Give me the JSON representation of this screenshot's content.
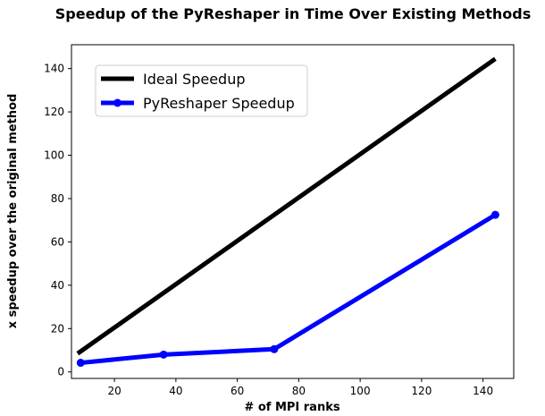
{
  "chart_data": {
    "type": "line",
    "title": "Speedup of the PyReshaper in Time Over Existing Methods",
    "xlabel": "# of MPI ranks",
    "ylabel": "x speedup over the original method",
    "xlim": [
      6,
      150
    ],
    "ylim": [
      -3,
      151
    ],
    "xticks": [
      20,
      40,
      60,
      80,
      100,
      120,
      140
    ],
    "yticks": [
      0,
      20,
      40,
      60,
      80,
      100,
      120,
      140
    ],
    "grid": false,
    "legend_position": "top-left",
    "series": [
      {
        "name": "Ideal Speedup",
        "color": "#000000",
        "marker": "none",
        "x": [
          8,
          144
        ],
        "y": [
          8.5,
          144.5
        ]
      },
      {
        "name": "PyReshaper Speedup",
        "color": "#0000ff",
        "marker": "circle",
        "x": [
          9,
          36,
          72,
          144
        ],
        "y": [
          4.2,
          8.0,
          10.5,
          72.5
        ]
      }
    ]
  }
}
